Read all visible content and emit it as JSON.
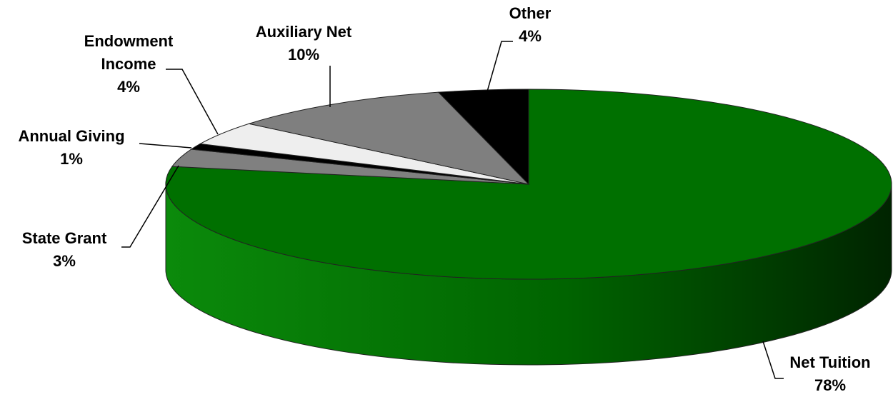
{
  "chart_data": {
    "type": "pie3d",
    "categories": [
      "Net Tuition",
      "State Grant",
      "Annual Giving",
      "Endowment Income",
      "Auxiliary Net",
      "Other"
    ],
    "values": [
      78,
      3,
      1,
      4,
      10,
      4
    ],
    "value_labels": [
      "78%",
      "3%",
      "1%",
      "4%",
      "10%",
      "4%"
    ],
    "colors": [
      "#007000",
      "#808080",
      "#000000",
      "#eeeeee",
      "#7f7f7f",
      "#000000"
    ]
  }
}
